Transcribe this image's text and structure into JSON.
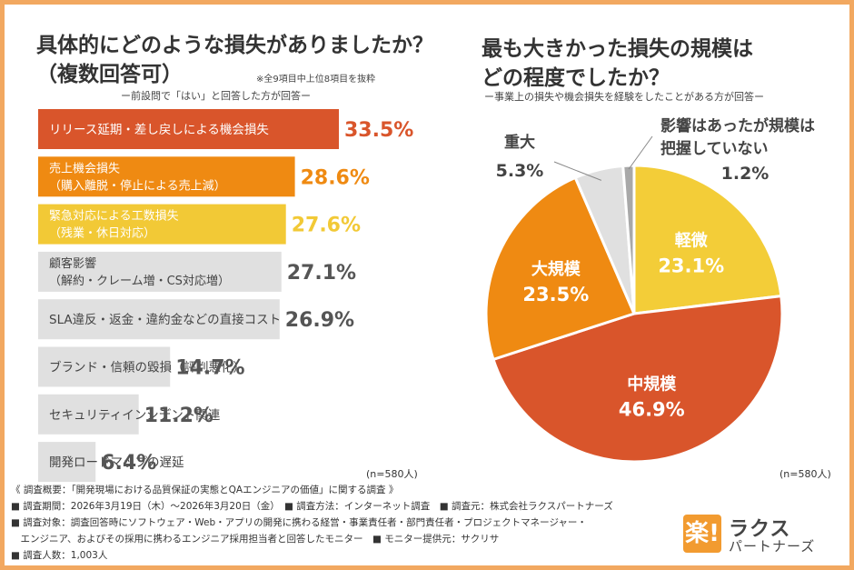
{
  "left": {
    "title_line1": "具体的にどのような損失がありましたか？",
    "title_line2": "（複数回答可）",
    "note": "※全9項目中上位8項目を抜粋",
    "subtitle": "ー前設問で「はい」と回答した方が回答ー",
    "n": "(n=580人)"
  },
  "right": {
    "title_line1": "最も大きかった損失の規模は",
    "title_line2": "どの程度でしたか？",
    "subtitle": "ー事業上の損失や機会損失を経験をしたことがある方が回答ー",
    "n": "(n=580人)"
  },
  "chart_data": [
    {
      "type": "bar",
      "orientation": "horizontal",
      "categories": [
        [
          "リリース延期・差し戻しによる機会損失"
        ],
        [
          "売上機会損失",
          "（購入離脱・停止による売上減）"
        ],
        [
          "緊急対応による工数損失",
          "（残業・休日対応）"
        ],
        [
          "顧客影響",
          "（解約・クレーム増・CS対応増）"
        ],
        [
          "SLA違反・返金・違約金などの直接コスト"
        ],
        [
          "ブランド・信頼の毀損（評判悪化）"
        ],
        [
          "セキュリティインシデント関連"
        ],
        [
          "開発ロードマップの遅延"
        ]
      ],
      "values": [
        33.5,
        28.6,
        27.6,
        27.1,
        26.9,
        14.7,
        11.2,
        6.4
      ],
      "value_labels": [
        "33.5%",
        "28.6%",
        "27.6%",
        "27.1%",
        "26.9%",
        "14.7%",
        "11.2%",
        "6.4%"
      ],
      "bar_colors": [
        "#d9552b",
        "#ef8a12",
        "#f2c936",
        "#e0e0e0",
        "#e0e0e0",
        "#e0e0e0",
        "#e0e0e0",
        "#e0e0e0"
      ],
      "value_colors": [
        "#d9552b",
        "#ef8a12",
        "#f2c936",
        "#555555",
        "#555555",
        "#555555",
        "#555555",
        "#555555"
      ]
    },
    {
      "type": "pie",
      "labels": [
        "軽微",
        "中規模",
        "大規模",
        "重大",
        "影響はあったが規模は把握していない"
      ],
      "values": [
        23.1,
        46.9,
        23.5,
        5.3,
        1.2
      ],
      "value_labels": [
        "23.1%",
        "46.9%",
        "23.5%",
        "5.3%",
        "1.2%"
      ],
      "colors": [
        "#f3cd38",
        "#d9552b",
        "#ef8a12",
        "#e0e0e0",
        "#a8a8a8"
      ],
      "start": "12 o'clock",
      "direction": "clockwise"
    }
  ],
  "footer": {
    "line1": "《 調査概要：「開発現場における品質保証の実態とQAエンジニアの価値」に関する調査 》",
    "line2": "■ 調査期間：2026年3月19日（木）～2026年3月20日（金）　■ 調査方法：インターネット調査　■ 調査元：株式会社ラクスパートナーズ",
    "line3": "■ 調査対象：調査回答時にソフトウェア・Web・アプリの開発に携わる経営・事業責任者・部門責任者・プロジェクトマネージャー・",
    "line4": "　エンジニア、およびその採用に携わるエンジニア採用担当者と回答したモニター　■ モニター提供元：サクリサ",
    "line5": "■ 調査人数：1,003人"
  },
  "logo": {
    "mark": "楽!",
    "name_line1": "ラクス",
    "name_line2": "パートナーズ"
  }
}
